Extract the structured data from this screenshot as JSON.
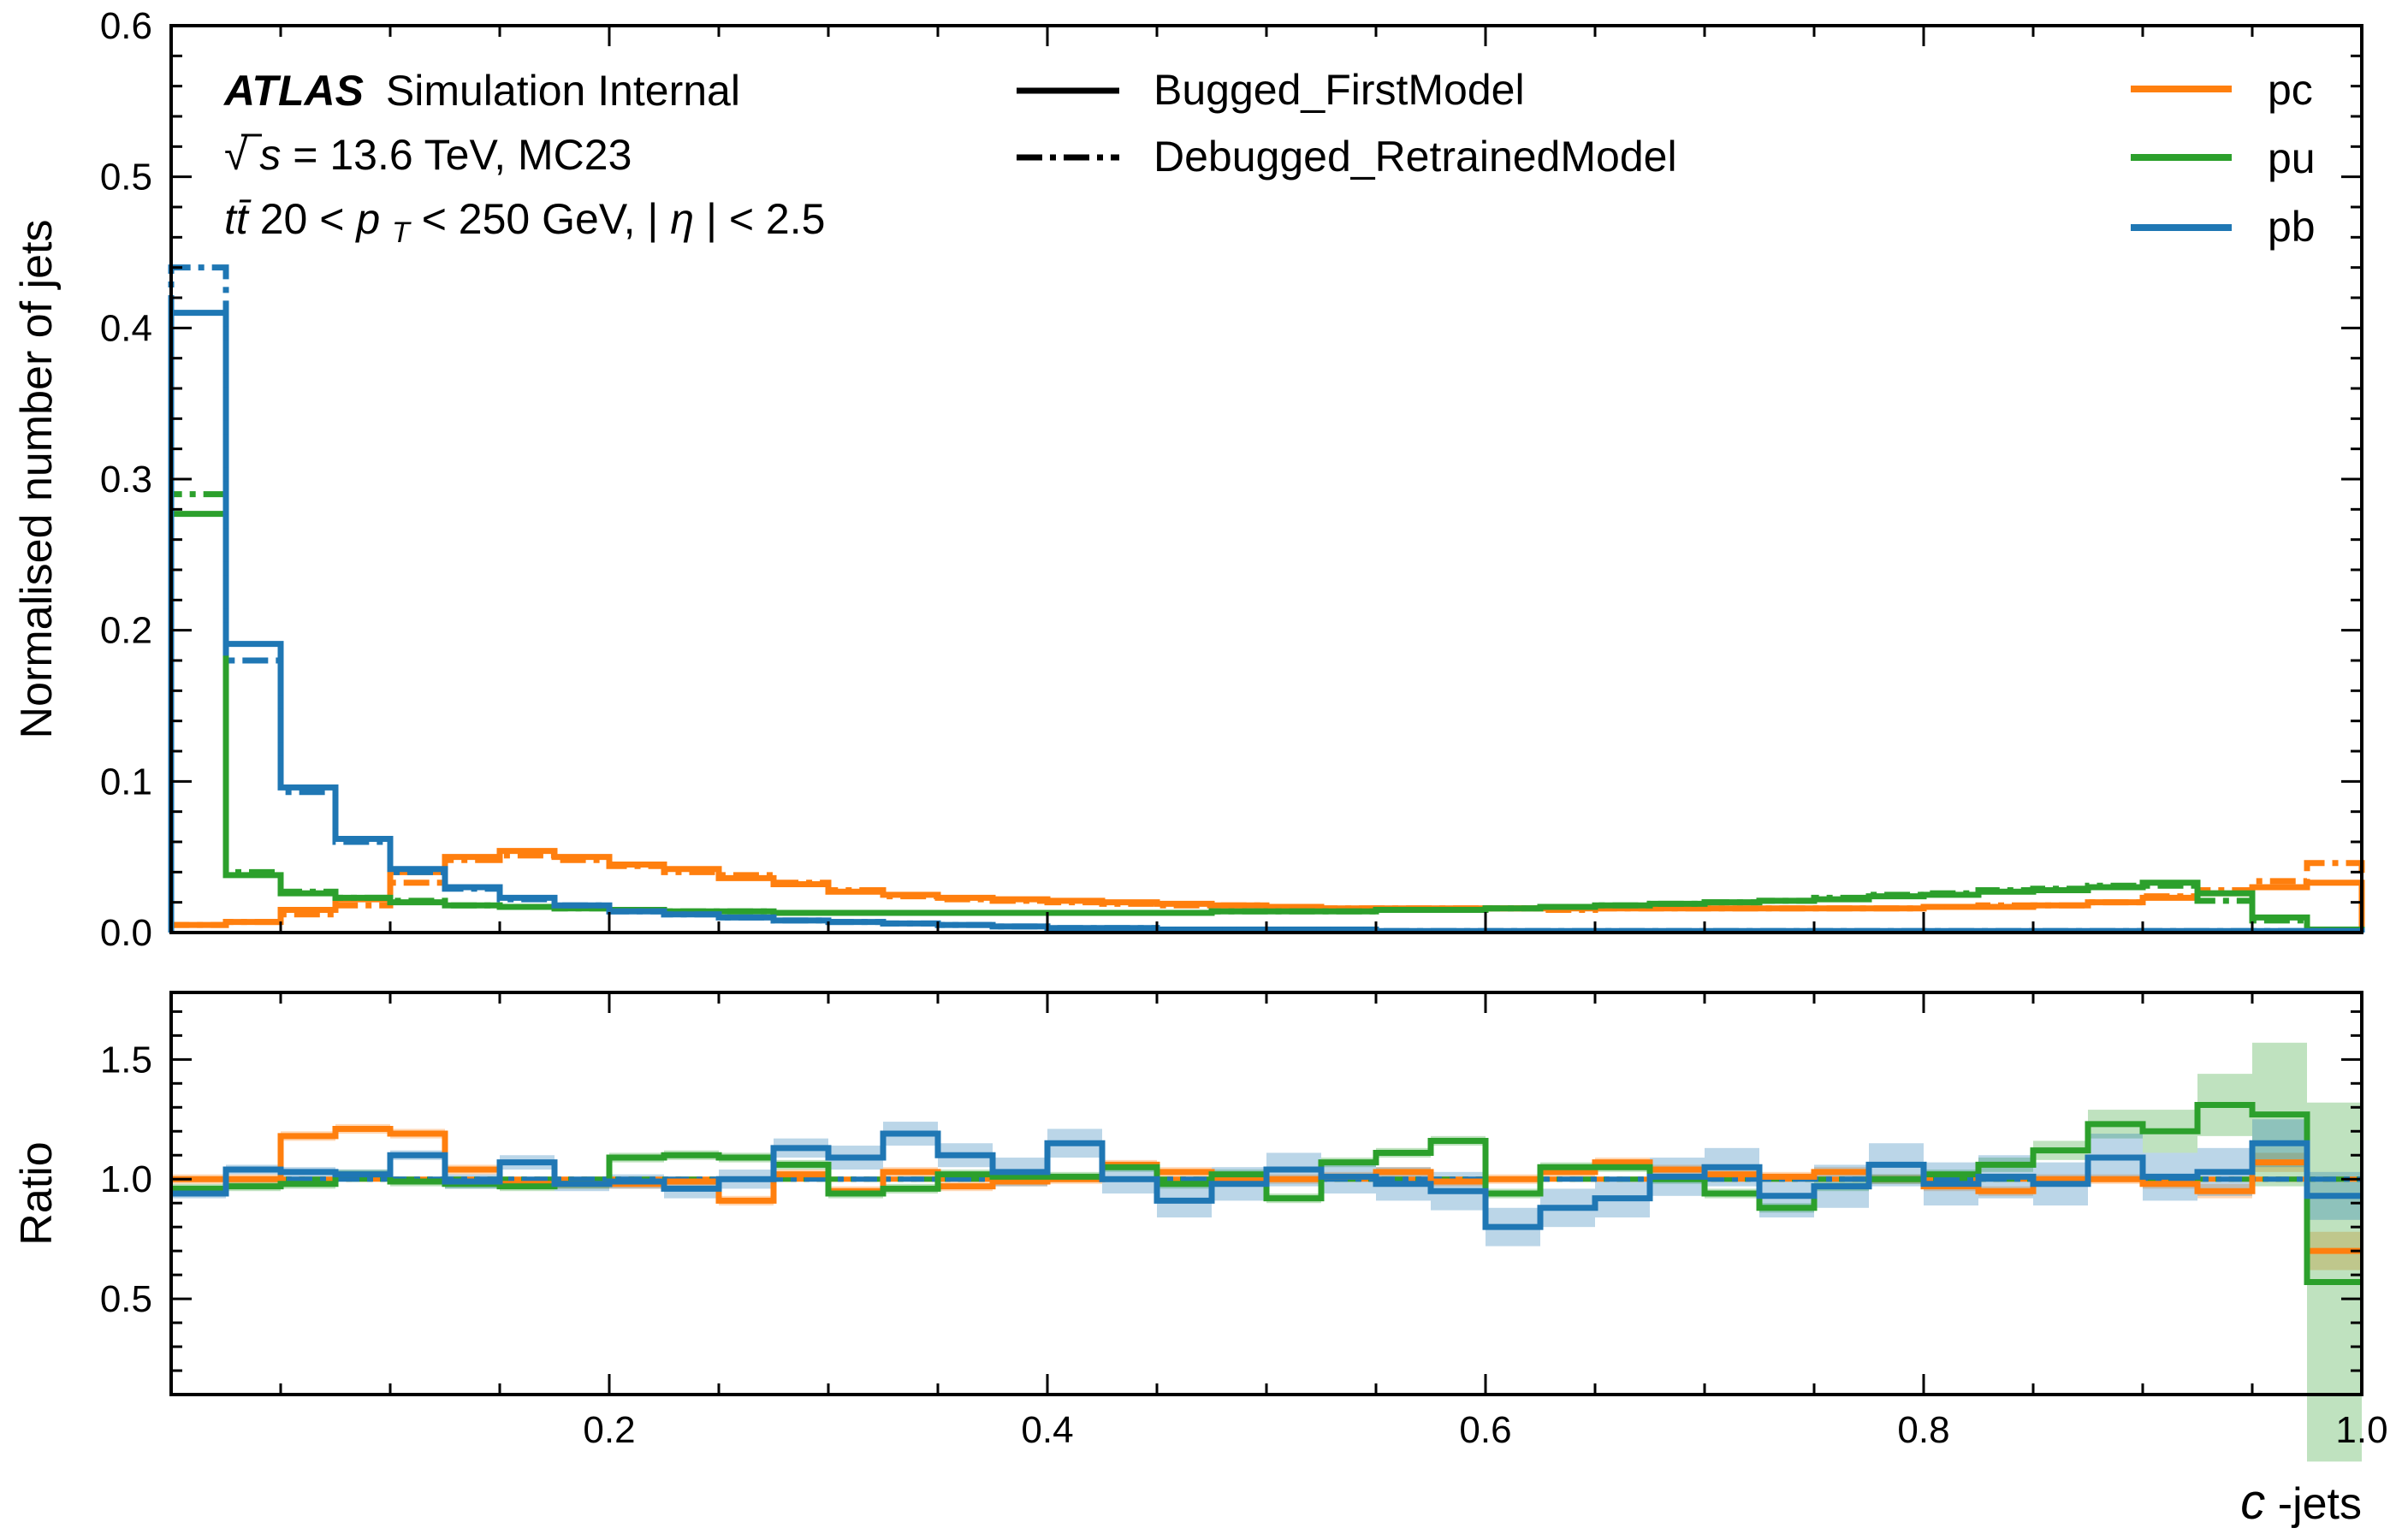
{
  "chart_data": [
    {
      "type": "line",
      "panel": "main",
      "ylabel": "Normalised number of jets",
      "ylim": [
        0,
        0.6
      ],
      "xlim": [
        0,
        1
      ],
      "yticks": [
        "0.0",
        "0.1",
        "0.2",
        "0.3",
        "0.4",
        "0.5",
        "0.6"
      ],
      "info": {
        "atlas": "ATLAS",
        "status": "Simulation Internal",
        "line2_prefix": "√",
        "line2_var": "s",
        "line2_rest": " = 13.6 TeV, MC23",
        "line3_proc": "tt̄",
        "line3_a": " 20 < ",
        "line3_var": "p",
        "line3_sub": "T",
        "line3_b": " < 250 GeV, |",
        "line3_eta": "η",
        "line3_c": "| < 2.5"
      },
      "legend_models": [
        {
          "label": "Bugged_FirstModel",
          "style": "solid"
        },
        {
          "label": "Debugged_RetrainedModel",
          "style": "dashdot"
        }
      ],
      "legend_series": [
        {
          "label": "pc",
          "color": "#ff7f0e"
        },
        {
          "label": "pu",
          "color": "#2ca02c"
        },
        {
          "label": "pb",
          "color": "#1f77b4"
        }
      ],
      "bin_edges": [
        0.0,
        0.025,
        0.05,
        0.075,
        0.1,
        0.125,
        0.15,
        0.175,
        0.2,
        0.225,
        0.25,
        0.275,
        0.3,
        0.325,
        0.35,
        0.375,
        0.4,
        0.425,
        0.45,
        0.475,
        0.5,
        0.525,
        0.55,
        0.575,
        0.6,
        0.625,
        0.65,
        0.675,
        0.7,
        0.725,
        0.75,
        0.775,
        0.8,
        0.825,
        0.85,
        0.875,
        0.9,
        0.925,
        0.95,
        0.975,
        1.0
      ],
      "series": [
        {
          "name": "pc",
          "model": "Bugged_FirstModel",
          "color": "#ff7f0e",
          "style": "solid",
          "values": [
            0.005,
            0.007,
            0.015,
            0.022,
            0.04,
            0.05,
            0.054,
            0.05,
            0.045,
            0.042,
            0.036,
            0.032,
            0.027,
            0.025,
            0.023,
            0.022,
            0.021,
            0.02,
            0.019,
            0.018,
            0.017,
            0.016,
            0.016,
            0.016,
            0.016,
            0.016,
            0.016,
            0.016,
            0.016,
            0.016,
            0.016,
            0.016,
            0.017,
            0.017,
            0.018,
            0.02,
            0.023,
            0.026,
            0.03,
            0.033
          ]
        },
        {
          "name": "pc",
          "model": "Debugged_RetrainedModel",
          "color": "#ff7f0e",
          "style": "dashdot",
          "values": [
            0.005,
            0.007,
            0.012,
            0.018,
            0.033,
            0.048,
            0.051,
            0.048,
            0.044,
            0.04,
            0.038,
            0.033,
            0.028,
            0.024,
            0.022,
            0.021,
            0.02,
            0.019,
            0.018,
            0.018,
            0.017,
            0.016,
            0.016,
            0.016,
            0.016,
            0.015,
            0.016,
            0.016,
            0.016,
            0.016,
            0.016,
            0.016,
            0.017,
            0.018,
            0.018,
            0.02,
            0.024,
            0.028,
            0.034,
            0.046
          ]
        },
        {
          "name": "pu",
          "model": "Bugged_FirstModel",
          "color": "#2ca02c",
          "style": "solid",
          "values": [
            0.277,
            0.038,
            0.026,
            0.023,
            0.02,
            0.018,
            0.017,
            0.016,
            0.015,
            0.014,
            0.014,
            0.013,
            0.013,
            0.013,
            0.013,
            0.013,
            0.013,
            0.013,
            0.013,
            0.014,
            0.014,
            0.014,
            0.015,
            0.015,
            0.016,
            0.017,
            0.018,
            0.019,
            0.02,
            0.021,
            0.022,
            0.024,
            0.025,
            0.027,
            0.028,
            0.03,
            0.033,
            0.026,
            0.01,
            0.002
          ]
        },
        {
          "name": "pu",
          "model": "Debugged_RetrainedModel",
          "color": "#2ca02c",
          "style": "dashdot",
          "values": [
            0.29,
            0.04,
            0.027,
            0.023,
            0.021,
            0.018,
            0.017,
            0.016,
            0.015,
            0.014,
            0.014,
            0.013,
            0.013,
            0.013,
            0.013,
            0.013,
            0.013,
            0.013,
            0.013,
            0.014,
            0.014,
            0.014,
            0.015,
            0.015,
            0.016,
            0.017,
            0.018,
            0.019,
            0.02,
            0.021,
            0.023,
            0.025,
            0.026,
            0.028,
            0.029,
            0.031,
            0.031,
            0.021,
            0.008,
            0.002
          ]
        },
        {
          "name": "pb",
          "model": "Bugged_FirstModel",
          "color": "#1f77b4",
          "style": "solid",
          "values": [
            0.41,
            0.191,
            0.096,
            0.062,
            0.042,
            0.03,
            0.023,
            0.018,
            0.014,
            0.012,
            0.01,
            0.008,
            0.007,
            0.006,
            0.005,
            0.004,
            0.003,
            0.003,
            0.002,
            0.002,
            0.002,
            0.002,
            0.001,
            0.001,
            0.001,
            0.001,
            0.001,
            0.001,
            0.001,
            0.001,
            0.001,
            0.001,
            0.001,
            0.001,
            0.001,
            0.001,
            0.001,
            0.001,
            0.001,
            0.001
          ]
        },
        {
          "name": "pb",
          "model": "Debugged_RetrainedModel",
          "color": "#1f77b4",
          "style": "dashdot",
          "values": [
            0.44,
            0.18,
            0.093,
            0.06,
            0.04,
            0.029,
            0.022,
            0.018,
            0.014,
            0.012,
            0.01,
            0.008,
            0.007,
            0.006,
            0.005,
            0.004,
            0.003,
            0.003,
            0.002,
            0.002,
            0.002,
            0.002,
            0.001,
            0.001,
            0.001,
            0.001,
            0.001,
            0.001,
            0.001,
            0.001,
            0.001,
            0.001,
            0.001,
            0.001,
            0.001,
            0.001,
            0.001,
            0.001,
            0.001,
            0.001
          ]
        }
      ]
    },
    {
      "type": "line",
      "panel": "ratio",
      "ylabel": "Ratio",
      "xlabel_var": "c",
      "xlabel_rest": "-jets",
      "ylim": [
        0.1,
        1.78
      ],
      "xlim": [
        0,
        1
      ],
      "yticks": [
        "0.5",
        "1.0",
        "1.5"
      ],
      "xticks": [
        "0.2",
        "0.4",
        "0.6",
        "0.8",
        "1.0"
      ],
      "bin_edges": [
        0.0,
        0.025,
        0.05,
        0.075,
        0.1,
        0.125,
        0.15,
        0.175,
        0.2,
        0.225,
        0.25,
        0.275,
        0.3,
        0.325,
        0.35,
        0.375,
        0.4,
        0.425,
        0.45,
        0.475,
        0.5,
        0.525,
        0.55,
        0.575,
        0.6,
        0.625,
        0.65,
        0.675,
        0.7,
        0.725,
        0.75,
        0.775,
        0.8,
        0.825,
        0.85,
        0.875,
        0.9,
        0.925,
        0.95,
        0.975,
        1.0
      ],
      "reference": 1.0,
      "series": [
        {
          "name": "pc",
          "color": "#ff7f0e",
          "values": [
            1.0,
            1.0,
            1.18,
            1.21,
            1.19,
            1.04,
            0.98,
            0.98,
            0.98,
            0.99,
            0.91,
            1.02,
            0.95,
            1.03,
            0.97,
            0.99,
            1.0,
            1.06,
            1.03,
            1.0,
            1.0,
            1.01,
            1.03,
            0.99,
            1.0,
            1.03,
            1.07,
            1.04,
            1.02,
            1.01,
            1.03,
            1.0,
            0.97,
            0.95,
            1.0,
            1.0,
            0.98,
            0.95,
            1.07,
            0.7
          ],
          "band": [
            0.02,
            0.02,
            0.02,
            0.02,
            0.02,
            0.02,
            0.02,
            0.02,
            0.02,
            0.02,
            0.02,
            0.02,
            0.02,
            0.02,
            0.02,
            0.02,
            0.02,
            0.02,
            0.02,
            0.02,
            0.02,
            0.02,
            0.02,
            0.02,
            0.02,
            0.02,
            0.02,
            0.02,
            0.02,
            0.02,
            0.02,
            0.02,
            0.02,
            0.02,
            0.02,
            0.02,
            0.02,
            0.03,
            0.04,
            0.08
          ]
        },
        {
          "name": "pu",
          "color": "#2ca02c",
          "values": [
            0.96,
            0.97,
            0.98,
            1.02,
            0.99,
            0.98,
            0.97,
            0.98,
            1.09,
            1.1,
            1.09,
            1.06,
            0.94,
            0.96,
            1.02,
            1.01,
            1.01,
            1.05,
            0.98,
            1.02,
            0.92,
            1.07,
            1.11,
            1.16,
            0.94,
            1.05,
            1.05,
            1.0,
            0.94,
            0.88,
            0.97,
            1.0,
            1.02,
            1.06,
            1.12,
            1.23,
            1.2,
            1.31,
            1.27,
            0.57
          ],
          "band": [
            0.02,
            0.02,
            0.02,
            0.02,
            0.02,
            0.02,
            0.02,
            0.02,
            0.02,
            0.02,
            0.02,
            0.02,
            0.02,
            0.02,
            0.02,
            0.02,
            0.02,
            0.02,
            0.02,
            0.02,
            0.02,
            0.02,
            0.02,
            0.02,
            0.02,
            0.02,
            0.02,
            0.02,
            0.02,
            0.02,
            0.02,
            0.02,
            0.02,
            0.03,
            0.04,
            0.06,
            0.09,
            0.13,
            0.3,
            0.75
          ]
        },
        {
          "name": "pb",
          "color": "#1f77b4",
          "values": [
            0.94,
            1.04,
            1.03,
            1.02,
            1.1,
            0.99,
            1.07,
            0.98,
            0.99,
            0.96,
            1.0,
            1.13,
            1.09,
            1.19,
            1.1,
            1.03,
            1.15,
            1.0,
            0.91,
            0.98,
            1.04,
            1.01,
            0.98,
            0.95,
            0.8,
            0.88,
            0.92,
            1.01,
            1.05,
            0.93,
            0.97,
            1.06,
            0.98,
            1.01,
            0.98,
            1.09,
            1.01,
            1.03,
            1.15,
            0.93
          ],
          "band": [
            0.02,
            0.02,
            0.02,
            0.02,
            0.02,
            0.03,
            0.03,
            0.03,
            0.03,
            0.04,
            0.04,
            0.04,
            0.05,
            0.05,
            0.05,
            0.06,
            0.06,
            0.06,
            0.07,
            0.07,
            0.07,
            0.07,
            0.07,
            0.08,
            0.08,
            0.08,
            0.08,
            0.08,
            0.08,
            0.09,
            0.09,
            0.09,
            0.09,
            0.09,
            0.09,
            0.1,
            0.1,
            0.1,
            0.1,
            0.1
          ]
        }
      ]
    }
  ]
}
